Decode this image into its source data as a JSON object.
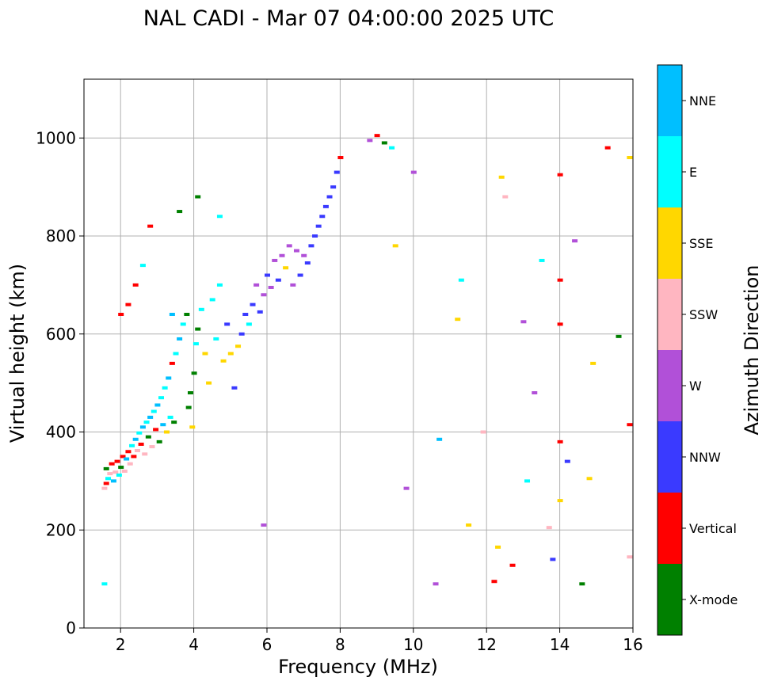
{
  "chart_data": {
    "type": "scatter",
    "title": "NAL CADI - Mar 07 04:00:00 2025 UTC",
    "xlabel": "Frequency (MHz)",
    "ylabel": "Virtual height (km)",
    "xlim": [
      1,
      16
    ],
    "ylim": [
      0,
      1120
    ],
    "xticks": [
      2,
      4,
      6,
      8,
      10,
      12,
      14,
      16
    ],
    "yticks": [
      0,
      200,
      400,
      600,
      800,
      1000
    ],
    "grid": true,
    "colorbar": {
      "label": "Azimuth Direction",
      "categories": [
        "X-mode",
        "Vertical",
        "NNW",
        "W",
        "SSW",
        "SSE",
        "E",
        "NNE"
      ],
      "colors": [
        "#008000",
        "#ff0000",
        "#3a3aff",
        "#b150d8",
        "#ffb6c1",
        "#ffd700",
        "#00ffff",
        "#00bfff"
      ]
    },
    "points": [
      [
        1.55,
        285,
        "SSW"
      ],
      [
        1.6,
        295,
        "Vertical"
      ],
      [
        1.65,
        305,
        "E"
      ],
      [
        1.7,
        315,
        "SSW"
      ],
      [
        1.6,
        325,
        "X-mode"
      ],
      [
        1.75,
        335,
        "Vertical"
      ],
      [
        1.8,
        300,
        "NNE"
      ],
      [
        1.85,
        318,
        "SSW"
      ],
      [
        1.9,
        340,
        "Vertical"
      ],
      [
        1.95,
        312,
        "E"
      ],
      [
        2.0,
        328,
        "X-mode"
      ],
      [
        2.05,
        350,
        "Vertical"
      ],
      [
        2.1,
        320,
        "SSW"
      ],
      [
        2.15,
        345,
        "NNE"
      ],
      [
        2.2,
        360,
        "Vertical"
      ],
      [
        2.25,
        335,
        "SSW"
      ],
      [
        2.3,
        372,
        "E"
      ],
      [
        2.35,
        350,
        "Vertical"
      ],
      [
        2.4,
        385,
        "NNE"
      ],
      [
        2.45,
        362,
        "SSW"
      ],
      [
        2.5,
        398,
        "E"
      ],
      [
        2.55,
        375,
        "Vertical"
      ],
      [
        2.6,
        410,
        "NNE"
      ],
      [
        2.65,
        355,
        "SSW"
      ],
      [
        2.7,
        420,
        "E"
      ],
      [
        2.75,
        390,
        "X-mode"
      ],
      [
        2.8,
        430,
        "NNE"
      ],
      [
        2.85,
        370,
        "SSW"
      ],
      [
        2.9,
        442,
        "E"
      ],
      [
        2.95,
        405,
        "Vertical"
      ],
      [
        3.0,
        455,
        "NNE"
      ],
      [
        3.05,
        380,
        "X-mode"
      ],
      [
        3.1,
        470,
        "E"
      ],
      [
        3.15,
        415,
        "NNE"
      ],
      [
        3.2,
        490,
        "E"
      ],
      [
        3.25,
        400,
        "SSE"
      ],
      [
        3.3,
        510,
        "NNE"
      ],
      [
        3.35,
        430,
        "E"
      ],
      [
        3.4,
        540,
        "Vertical"
      ],
      [
        3.45,
        420,
        "X-mode"
      ],
      [
        3.5,
        560,
        "E"
      ],
      [
        3.6,
        590,
        "NNE"
      ],
      [
        3.7,
        620,
        "E"
      ],
      [
        3.8,
        640,
        "X-mode"
      ],
      [
        3.85,
        450,
        "X-mode"
      ],
      [
        3.9,
        480,
        "X-mode"
      ],
      [
        3.95,
        410,
        "SSE"
      ],
      [
        4.0,
        520,
        "X-mode"
      ],
      [
        4.05,
        580,
        "E"
      ],
      [
        4.1,
        610,
        "X-mode"
      ],
      [
        4.2,
        650,
        "E"
      ],
      [
        4.3,
        560,
        "SSE"
      ],
      [
        4.4,
        500,
        "SSE"
      ],
      [
        4.5,
        670,
        "E"
      ],
      [
        4.6,
        590,
        "E"
      ],
      [
        4.7,
        700,
        "E"
      ],
      [
        4.8,
        545,
        "SSE"
      ],
      [
        4.9,
        620,
        "NNW"
      ],
      [
        5.0,
        560,
        "SSE"
      ],
      [
        5.1,
        490,
        "NNW"
      ],
      [
        5.2,
        575,
        "SSE"
      ],
      [
        5.3,
        600,
        "NNW"
      ],
      [
        5.4,
        640,
        "NNW"
      ],
      [
        5.5,
        620,
        "E"
      ],
      [
        5.6,
        660,
        "NNW"
      ],
      [
        5.7,
        700,
        "W"
      ],
      [
        5.8,
        645,
        "NNW"
      ],
      [
        5.9,
        680,
        "W"
      ],
      [
        6.0,
        720,
        "NNW"
      ],
      [
        6.1,
        695,
        "W"
      ],
      [
        6.2,
        750,
        "W"
      ],
      [
        6.3,
        710,
        "NNW"
      ],
      [
        6.4,
        760,
        "W"
      ],
      [
        6.5,
        735,
        "SSE"
      ],
      [
        6.6,
        780,
        "W"
      ],
      [
        6.7,
        700,
        "W"
      ],
      [
        6.8,
        770,
        "W"
      ],
      [
        6.9,
        720,
        "NNW"
      ],
      [
        7.0,
        760,
        "W"
      ],
      [
        7.1,
        745,
        "NNW"
      ],
      [
        7.2,
        780,
        "NNW"
      ],
      [
        7.3,
        800,
        "NNW"
      ],
      [
        7.4,
        820,
        "NNW"
      ],
      [
        7.5,
        840,
        "NNW"
      ],
      [
        7.6,
        860,
        "NNW"
      ],
      [
        7.7,
        880,
        "NNW"
      ],
      [
        7.8,
        900,
        "NNW"
      ],
      [
        7.9,
        930,
        "NNW"
      ],
      [
        8.0,
        960,
        "Vertical"
      ],
      [
        8.8,
        995,
        "W"
      ],
      [
        9.0,
        1005,
        "Vertical"
      ],
      [
        9.2,
        990,
        "X-mode"
      ],
      [
        9.4,
        980,
        "E"
      ],
      [
        2.0,
        640,
        "Vertical"
      ],
      [
        2.2,
        660,
        "Vertical"
      ],
      [
        2.4,
        700,
        "Vertical"
      ],
      [
        2.6,
        740,
        "E"
      ],
      [
        2.8,
        820,
        "Vertical"
      ],
      [
        3.4,
        640,
        "NNE"
      ],
      [
        3.6,
        850,
        "X-mode"
      ],
      [
        4.1,
        880,
        "X-mode"
      ],
      [
        4.7,
        840,
        "E"
      ],
      [
        1.55,
        90,
        "E"
      ],
      [
        5.9,
        210,
        "W"
      ],
      [
        10.6,
        90,
        "W"
      ],
      [
        10.7,
        385,
        "NNE"
      ],
      [
        11.2,
        630,
        "SSE"
      ],
      [
        11.3,
        710,
        "E"
      ],
      [
        11.5,
        210,
        "SSE"
      ],
      [
        11.9,
        400,
        "SSW"
      ],
      [
        12.2,
        95,
        "Vertical"
      ],
      [
        12.3,
        165,
        "SSE"
      ],
      [
        12.4,
        920,
        "SSE"
      ],
      [
        12.7,
        128,
        "Vertical"
      ],
      [
        13.0,
        625,
        "W"
      ],
      [
        13.1,
        300,
        "E"
      ],
      [
        13.3,
        480,
        "W"
      ],
      [
        13.7,
        205,
        "SSW"
      ],
      [
        13.8,
        140,
        "NNW"
      ],
      [
        14.0,
        925,
        "Vertical"
      ],
      [
        14.0,
        710,
        "Vertical"
      ],
      [
        14.0,
        620,
        "Vertical"
      ],
      [
        14.0,
        380,
        "Vertical"
      ],
      [
        14.0,
        260,
        "SSE"
      ],
      [
        14.2,
        340,
        "NNW"
      ],
      [
        14.4,
        790,
        "W"
      ],
      [
        14.6,
        90,
        "X-mode"
      ],
      [
        14.8,
        305,
        "SSE"
      ],
      [
        15.3,
        980,
        "Vertical"
      ],
      [
        15.6,
        595,
        "X-mode"
      ],
      [
        15.9,
        960,
        "SSE"
      ],
      [
        15.9,
        415,
        "Vertical"
      ],
      [
        15.9,
        145,
        "SSW"
      ],
      [
        9.8,
        285,
        "W"
      ],
      [
        9.5,
        780,
        "SSE"
      ],
      [
        10.0,
        930,
        "W"
      ],
      [
        12.5,
        880,
        "SSW"
      ],
      [
        13.5,
        750,
        "E"
      ],
      [
        14.9,
        540,
        "SSE"
      ]
    ]
  }
}
